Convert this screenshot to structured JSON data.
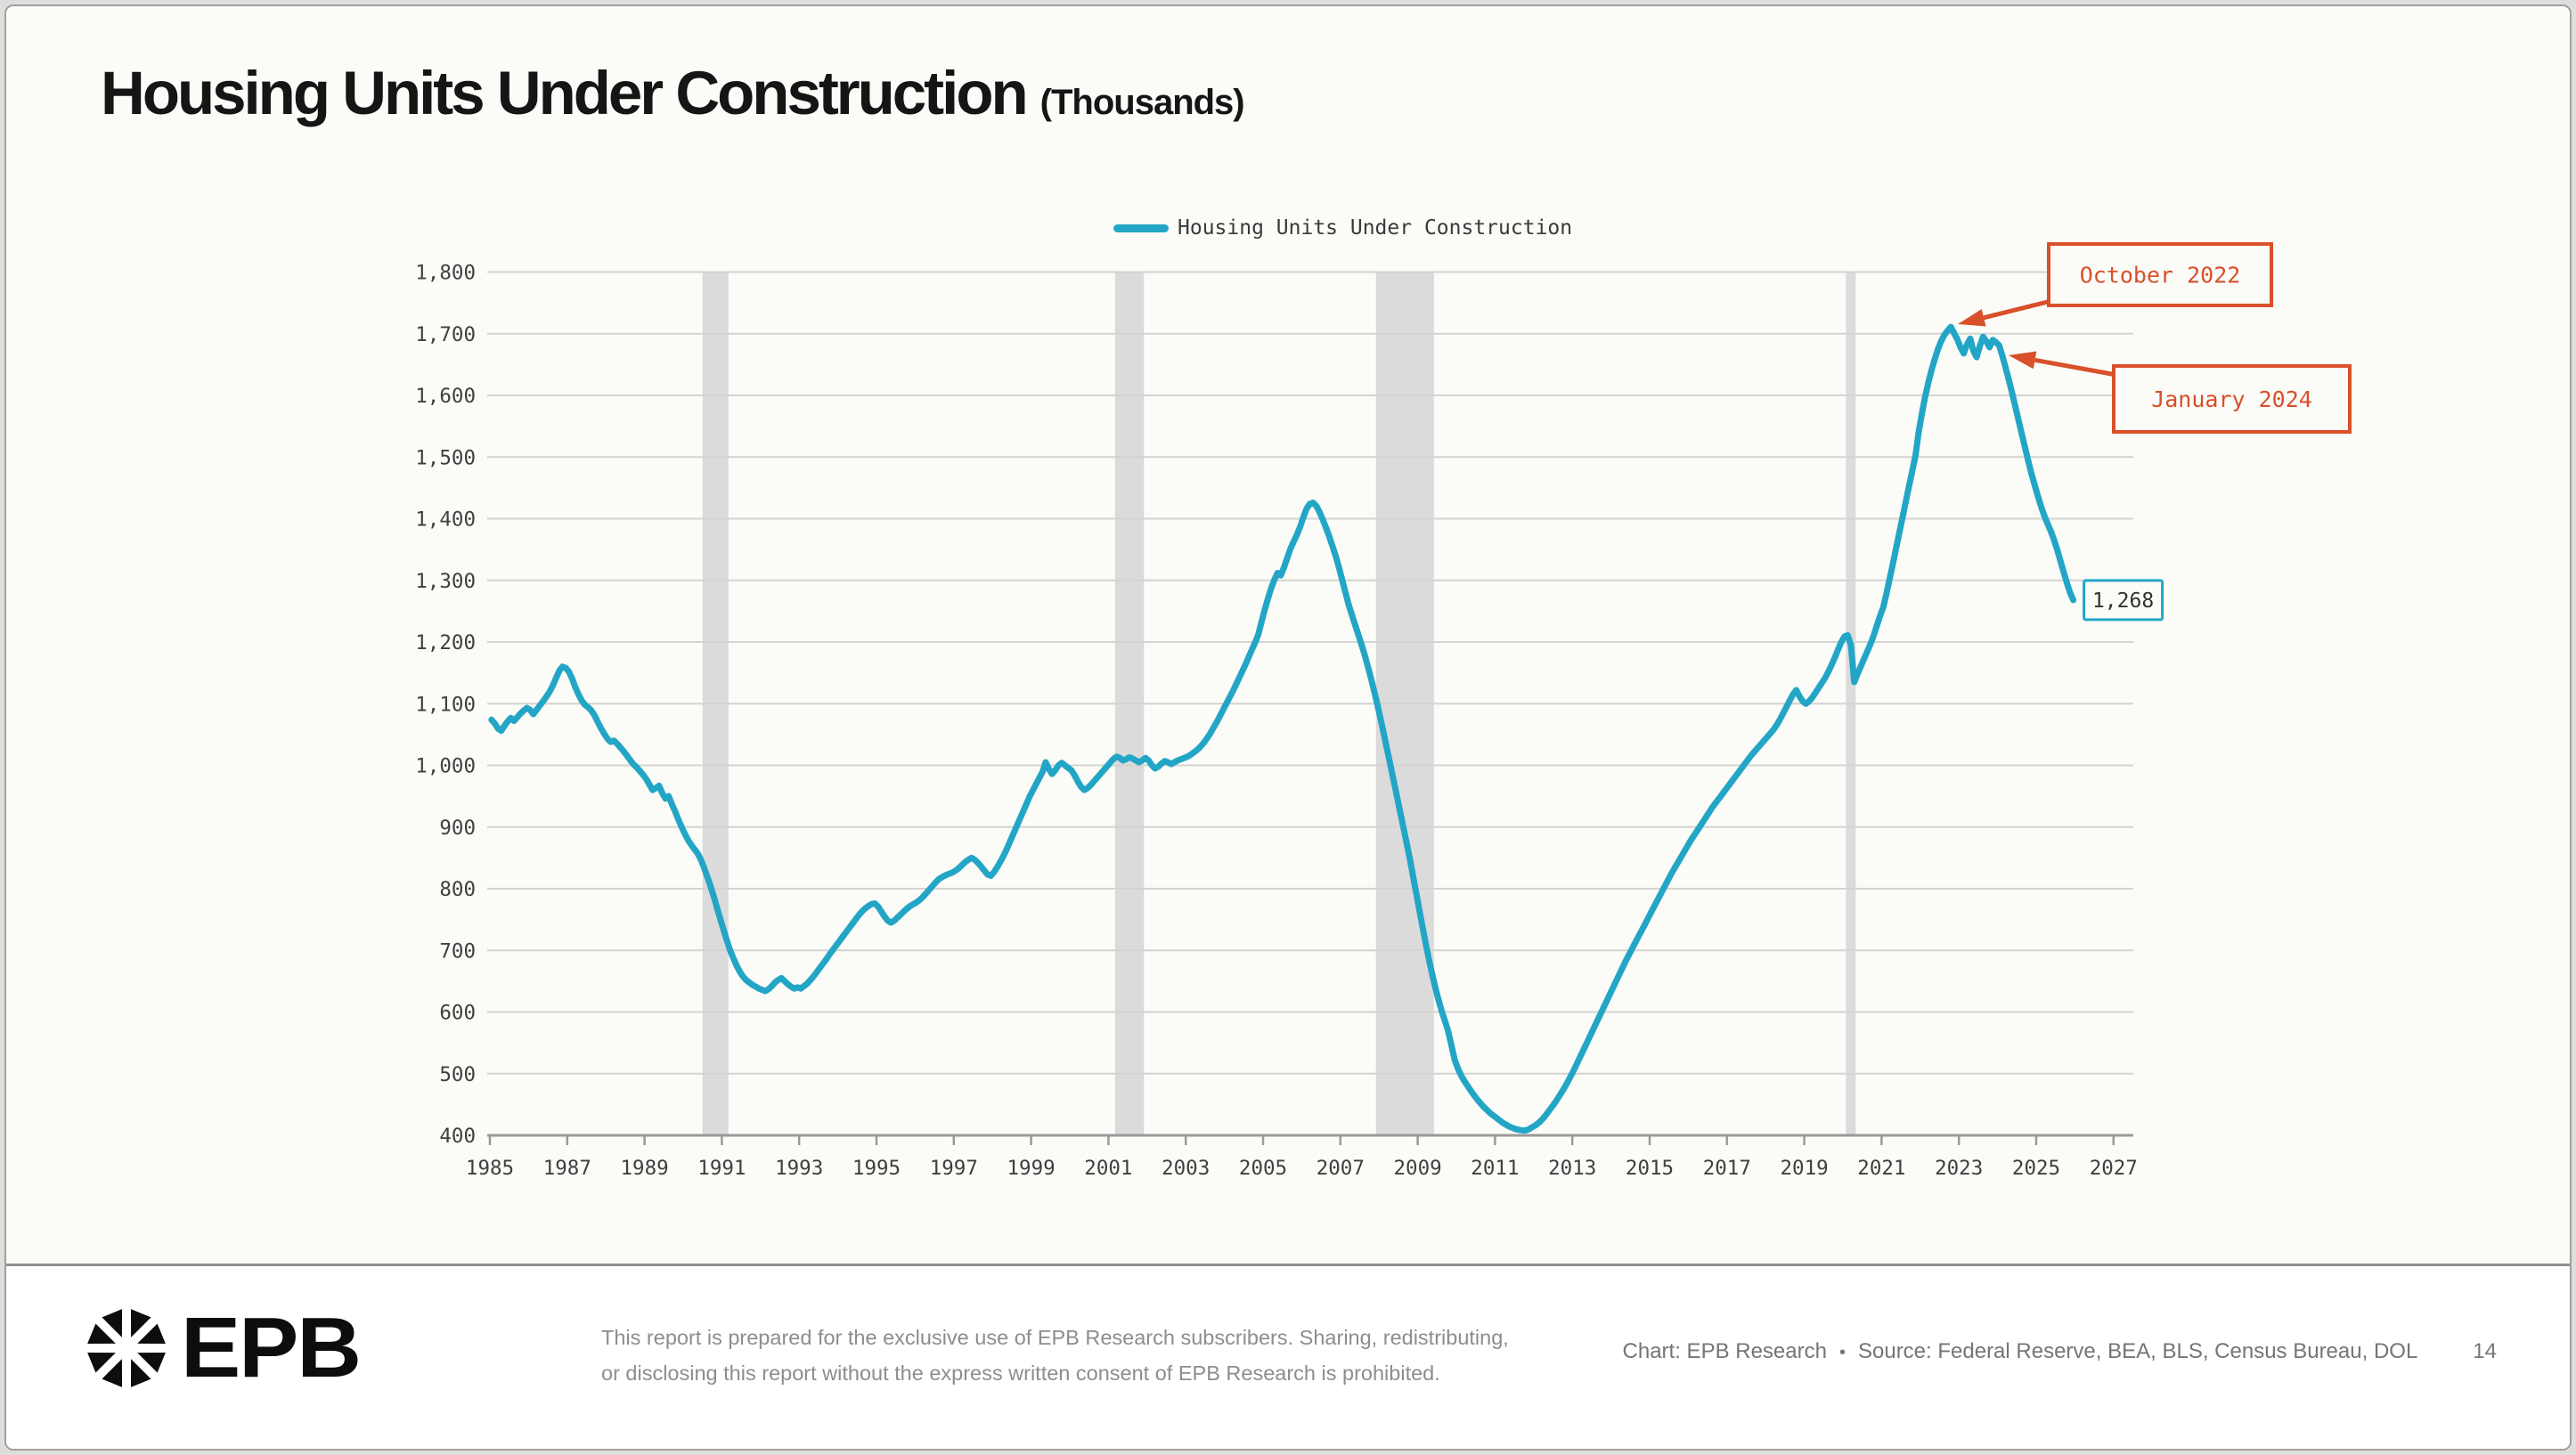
{
  "title": {
    "main": "Housing Units Under Construction",
    "unit": "(Thousands)"
  },
  "legend": {
    "label": "Housing Units Under Construction"
  },
  "colors": {
    "line": "#23A6C6",
    "accent_orange": "#D9502A",
    "recession_band": "#DBDBDB",
    "gridline": "#D3D3D1",
    "axis": "#9A9A9A",
    "tick_text": "#3F3F3F",
    "slide_bg": "#FBFBF8",
    "footer_bg": "#FFFFFF"
  },
  "chart_data": {
    "type": "line",
    "title": "Housing Units Under Construction",
    "unit_note": "(Thousands)",
    "grid": "horizontal-only",
    "legend_position": "top-center",
    "ylim": [
      400,
      1800
    ],
    "y_tick_step": 100,
    "y_tick_labels": [
      "400",
      "500",
      "600",
      "700",
      "800",
      "900",
      "1,000",
      "1,100",
      "1,200",
      "1,300",
      "1,400",
      "1,500",
      "1,600",
      "1,700",
      "1,800"
    ],
    "x_start_year": 1985,
    "x_end_year": 2027,
    "x_tick_labels": [
      "1985",
      "1987",
      "1989",
      "1991",
      "1993",
      "1995",
      "1997",
      "1999",
      "2001",
      "2003",
      "2005",
      "2007",
      "2009",
      "2011",
      "2013",
      "2015",
      "2017",
      "2019",
      "2021",
      "2023",
      "2025",
      "2027"
    ],
    "recession_bands": [
      [
        1990.5,
        1991.17
      ],
      [
        2001.17,
        2001.92
      ],
      [
        2007.92,
        2009.42
      ],
      [
        2020.08,
        2020.33
      ]
    ],
    "frequency": "monthly",
    "series": [
      {
        "name": "Housing Units Under Construction",
        "start": "1985-01",
        "end": "2025-12",
        "values": [
          1074,
          1068,
          1060,
          1056,
          1064,
          1071,
          1077,
          1072,
          1078,
          1084,
          1089,
          1093,
          1090,
          1083,
          1090,
          1097,
          1104,
          1111,
          1119,
          1129,
          1141,
          1153,
          1160,
          1158,
          1152,
          1141,
          1127,
          1115,
          1105,
          1098,
          1094,
          1089,
          1081,
          1070,
          1060,
          1051,
          1043,
          1038,
          1040,
          1035,
          1029,
          1023,
          1016,
          1009,
          1002,
          997,
          991,
          985,
          978,
          969,
          960,
          963,
          967,
          955,
          946,
          950,
          937,
          925,
          912,
          900,
          889,
          879,
          871,
          864,
          857,
          847,
          834,
          819,
          804,
          787,
          769,
          751,
          734,
          717,
          701,
          688,
          676,
          666,
          658,
          652,
          648,
          644,
          641,
          638,
          636,
          634,
          637,
          642,
          648,
          652,
          655,
          650,
          645,
          641,
          638,
          640,
          638,
          642,
          646,
          652,
          658,
          665,
          672,
          679,
          686,
          694,
          701,
          708,
          715,
          722,
          729,
          736,
          743,
          750,
          757,
          763,
          768,
          772,
          775,
          776,
          771,
          763,
          755,
          748,
          745,
          748,
          753,
          758,
          763,
          768,
          772,
          775,
          778,
          782,
          787,
          793,
          799,
          805,
          811,
          816,
          819,
          822,
          824,
          826,
          829,
          833,
          838,
          843,
          847,
          850,
          847,
          842,
          836,
          829,
          823,
          821,
          827,
          835,
          844,
          854,
          865,
          877,
          889,
          901,
          913,
          925,
          937,
          949,
          959,
          969,
          979,
          989,
          1005,
          994,
          986,
          992,
          1000,
          1004,
          1000,
          996,
          992,
          984,
          974,
          965,
          960,
          963,
          968,
          974,
          980,
          986,
          992,
          998,
          1004,
          1010,
          1014,
          1012,
          1008,
          1010,
          1013,
          1011,
          1008,
          1005,
          1008,
          1012,
          1008,
          1000,
          995,
          998,
          1003,
          1007,
          1005,
          1002,
          1005,
          1008,
          1010,
          1012,
          1014,
          1017,
          1021,
          1025,
          1030,
          1036,
          1043,
          1051,
          1060,
          1069,
          1079,
          1089,
          1099,
          1109,
          1119,
          1130,
          1141,
          1152,
          1163,
          1175,
          1187,
          1199,
          1212,
          1232,
          1252,
          1270,
          1287,
          1301,
          1312,
          1308,
          1321,
          1336,
          1351,
          1363,
          1374,
          1387,
          1402,
          1416,
          1424,
          1426,
          1421,
          1411,
          1399,
          1386,
          1372,
          1356,
          1340,
          1322,
          1302,
          1282,
          1262,
          1245,
          1229,
          1213,
          1197,
          1180,
          1161,
          1141,
          1120,
          1098,
          1075,
          1051,
          1026,
          1001,
          976,
          951,
          926,
          901,
          876,
          850,
          822,
          794,
          766,
          738,
          711,
          685,
          661,
          639,
          619,
          601,
          585,
          568,
          545,
          522,
          508,
          497,
          488,
          480,
          472,
          465,
          458,
          452,
          446,
          441,
          436,
          432,
          428,
          424,
          420,
          417,
          414,
          412,
          410,
          409,
          408,
          408,
          410,
          413,
          416,
          420,
          425,
          431,
          438,
          445,
          452,
          460,
          468,
          477,
          486,
          496,
          506,
          517,
          528,
          539,
          550,
          561,
          572,
          583,
          594,
          605,
          616,
          627,
          638,
          649,
          660,
          671,
          682,
          692,
          702,
          712,
          722,
          732,
          742,
          752,
          762,
          772,
          782,
          792,
          802,
          812,
          822,
          831,
          840,
          849,
          858,
          867,
          876,
          884,
          892,
          900,
          908,
          916,
          924,
          932,
          939,
          946,
          953,
          960,
          967,
          974,
          981,
          988,
          995,
          1002,
          1009,
          1016,
          1022,
          1028,
          1034,
          1040,
          1046,
          1052,
          1058,
          1066,
          1075,
          1085,
          1095,
          1105,
          1115,
          1122,
          1112,
          1104,
          1100,
          1104,
          1110,
          1118,
          1126,
          1134,
          1142,
          1152,
          1163,
          1175,
          1188,
          1200,
          1209,
          1211,
          1195,
          1135,
          1148,
          1160,
          1172,
          1184,
          1196,
          1210,
          1226,
          1242,
          1256,
          1278,
          1302,
          1327,
          1352,
          1377,
          1402,
          1427,
          1452,
          1477,
          1502,
          1540,
          1570,
          1597,
          1620,
          1641,
          1659,
          1675,
          1688,
          1698,
          1705,
          1711,
          1701,
          1691,
          1678,
          1668,
          1682,
          1692,
          1672,
          1662,
          1680,
          1695,
          1688,
          1678,
          1690,
          1686,
          1681,
          1664,
          1645,
          1625,
          1604,
          1582,
          1560,
          1538,
          1516,
          1494,
          1473,
          1455,
          1437,
          1420,
          1405,
          1392,
          1380,
          1366,
          1350,
          1332,
          1314,
          1296,
          1280,
          1268
        ]
      }
    ],
    "annotations": [
      {
        "label": "October 2022",
        "target_year_frac": 2022.79,
        "value": 1711
      },
      {
        "label": "January 2024",
        "target_year_frac": 2024.04,
        "value": 1681
      }
    ],
    "end_label": "1,268"
  },
  "footer": {
    "logo_text": "EPB",
    "disclaimer_line1": "This report is prepared for the exclusive use of EPB Research subscribers. Sharing, redistributing,",
    "disclaimer_line2": "or disclosing this report without the express written consent of EPB Research is prohibited.",
    "credit": "Chart: EPB Research",
    "separator": "•",
    "source": "Source: Federal Reserve, BEA, BLS, Census Bureau, DOL",
    "page_number": "14"
  }
}
